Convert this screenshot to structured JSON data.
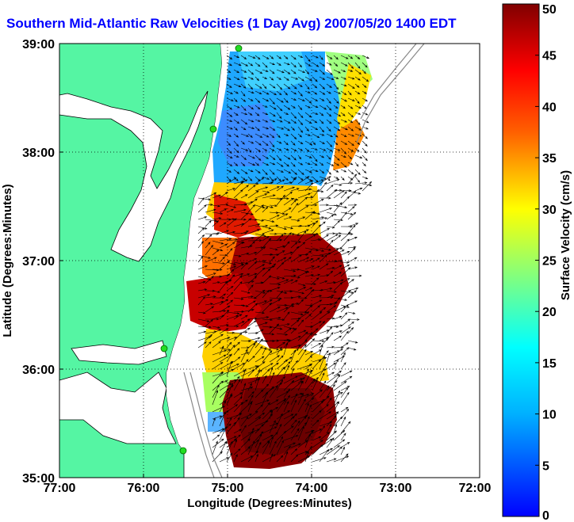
{
  "title": "Southern Mid-Atlantic Raw Velocities (1 Day Avg) 2007/05/20 1400 EDT",
  "axes": {
    "xlabel": "Longitude (Degrees:Minutes)",
    "ylabel": "Latitude (Degrees:Minutes)",
    "x_ticks": [
      "77:00",
      "76:00",
      "75:00",
      "74:00",
      "73:00",
      "72:00"
    ],
    "y_ticks": [
      "39:00",
      "38:00",
      "37:00",
      "36:00",
      "35:00"
    ],
    "xlim": [
      -77,
      -72
    ],
    "ylim": [
      35,
      39
    ]
  },
  "colorbar": {
    "label": "Surface Velocity (cm/s)",
    "ticks": [
      "50",
      "45",
      "40",
      "35",
      "30",
      "25",
      "20",
      "15",
      "10",
      "5",
      "0"
    ],
    "range": [
      0,
      50
    ],
    "colormap": "jet"
  },
  "colors": {
    "land": "#55f5a3",
    "ocean": "#ffffff",
    "title": "#0000ff",
    "station": "#22dd22",
    "bathymetry": "#888888"
  },
  "chart_data": {
    "type": "heatmap",
    "title": "Southern Mid-Atlantic Raw Velocities (1 Day Avg) 2007/05/20 1400 EDT",
    "xlabel": "Longitude (Degrees:Minutes)",
    "ylabel": "Latitude (Degrees:Minutes)",
    "xlim": [
      -77,
      -72
    ],
    "ylim": [
      35,
      39
    ],
    "grid": true,
    "value_range": [
      0,
      50
    ],
    "units": "cm/s",
    "regions": [
      {
        "lon_range": [
          -75.0,
          -73.9
        ],
        "lat_range": [
          37.8,
          38.9
        ],
        "approx_speed": 10
      },
      {
        "lon_range": [
          -73.9,
          -73.6
        ],
        "lat_range": [
          37.9,
          38.9
        ],
        "approx_speed": 22
      },
      {
        "lon_range": [
          -75.1,
          -74.5
        ],
        "lat_range": [
          37.0,
          37.5
        ],
        "approx_speed": 38
      },
      {
        "lon_range": [
          -74.8,
          -73.9
        ],
        "lat_range": [
          36.5,
          37.1
        ],
        "approx_speed": 45
      },
      {
        "lon_range": [
          -75.2,
          -74.2
        ],
        "lat_range": [
          36.0,
          36.5
        ],
        "approx_speed": 25
      },
      {
        "lon_range": [
          -74.9,
          -73.9
        ],
        "lat_range": [
          35.1,
          35.9
        ],
        "approx_speed": 50
      }
    ],
    "stations": [
      {
        "lon": -75.1,
        "lat": 39.0
      },
      {
        "lon": -75.15,
        "lat": 38.2
      },
      {
        "lon": -75.7,
        "lat": 36.2
      },
      {
        "lon": -75.5,
        "lat": 35.25
      }
    ]
  }
}
